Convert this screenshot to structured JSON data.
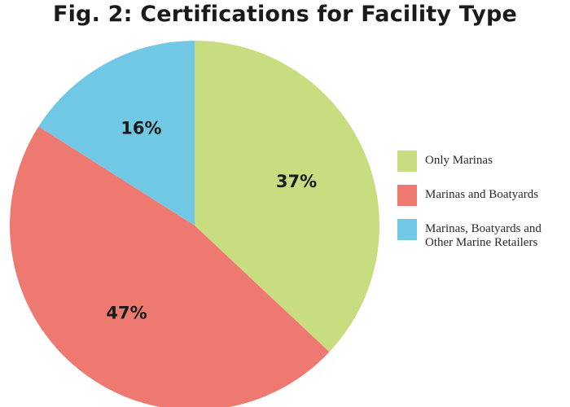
{
  "chart_data": {
    "type": "pie",
    "title": "Fig. 2: Certifications for Facility Type",
    "slices": [
      {
        "label": "Only Marinas",
        "value": 37,
        "display": "37%",
        "color": "#c8dd80"
      },
      {
        "label": "Marinas and Boatyards",
        "value": 47,
        "display": "47%",
        "color": "#ee7971"
      },
      {
        "label": "Marinas, Boatyards and\nOther Marine Retailers",
        "value": 16,
        "display": "16%",
        "color": "#71c8e4"
      }
    ],
    "start": "12 o'clock",
    "direction": "clockwise",
    "legend": "right"
  }
}
